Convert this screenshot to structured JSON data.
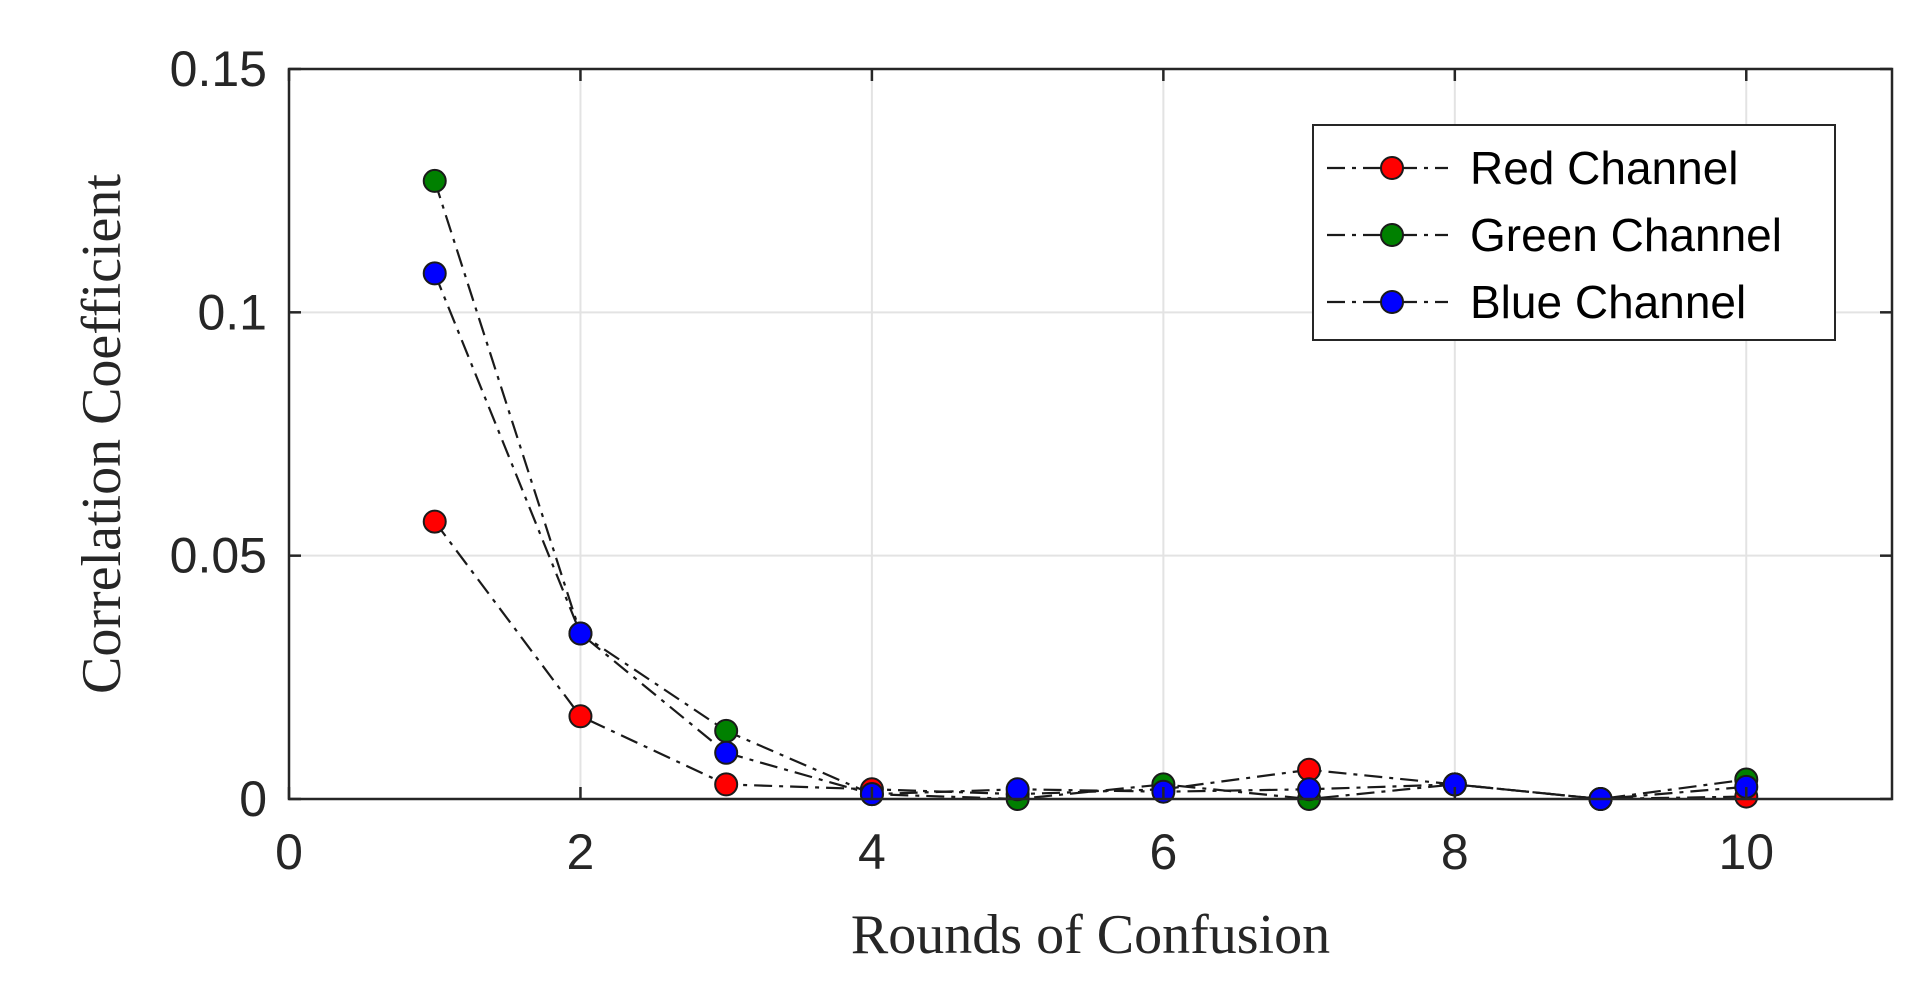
{
  "chart_data": {
    "type": "line",
    "title": "",
    "xlabel": "Rounds of Confusion",
    "ylabel": "Correlation Coefficient",
    "xlim": [
      0,
      11
    ],
    "ylim": [
      0,
      0.15
    ],
    "x_ticks": [
      0,
      2,
      4,
      6,
      8,
      10
    ],
    "x_tick_labels": [
      "0",
      "2",
      "4",
      "6",
      "8",
      "10"
    ],
    "y_ticks": [
      0,
      0.05,
      0.1,
      0.15
    ],
    "y_tick_labels": [
      "0",
      "0.05",
      "0.1",
      "0.15"
    ],
    "grid": true,
    "legend_position": "upper right",
    "line_style": "dash-dot",
    "x": [
      1,
      2,
      3,
      4,
      5,
      6,
      7,
      8,
      9,
      10
    ],
    "series": [
      {
        "name": "Red Channel",
        "color": "#ff0000",
        "values": [
          0.057,
          0.017,
          0.003,
          0.002,
          0.001,
          0.002,
          0.006,
          0.003,
          0.0,
          0.0005
        ]
      },
      {
        "name": "Green Channel",
        "color": "#008000",
        "values": [
          0.127,
          0.034,
          0.014,
          0.001,
          0.0,
          0.003,
          0.0,
          0.003,
          0.0,
          0.004
        ]
      },
      {
        "name": "Blue Channel",
        "color": "#0000ff",
        "values": [
          0.108,
          0.034,
          0.0095,
          0.001,
          0.002,
          0.0015,
          0.002,
          0.003,
          0.0,
          0.0025
        ]
      }
    ]
  },
  "legend": {
    "items": [
      {
        "label": "Red Channel",
        "color": "#ff0000"
      },
      {
        "label": "Green Channel",
        "color": "#008000"
      },
      {
        "label": "Blue Channel",
        "color": "#0000ff"
      }
    ]
  },
  "axes": {
    "xlabel": "Rounds of Confusion",
    "ylabel": "Correlation Coefficient"
  }
}
